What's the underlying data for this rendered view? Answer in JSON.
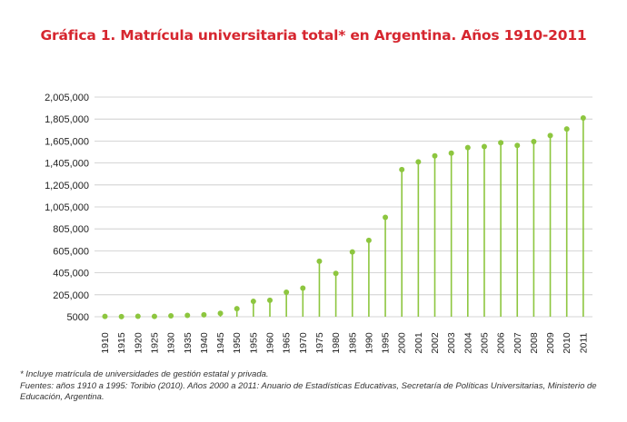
{
  "colors": {
    "title": "#d6262f",
    "series": "#8dc63f",
    "grid": "#c8c8c8",
    "text": "#222222"
  },
  "chart_data": {
    "type": "lollipop",
    "title": "Gráfica 1. Matrícula universitaria total* en Argentina. Años 1910-2011",
    "xlabel": "",
    "ylabel": "",
    "ylim": [
      5000,
      2005000
    ],
    "grid": true,
    "legend": "none",
    "y_ticks": [
      "2,005,000",
      "1,805,000",
      "1,605,000",
      "1,405,000",
      "1,205,000",
      "1,005,000",
      "805,000",
      "605,000",
      "405,000",
      "205,000",
      "5000"
    ],
    "y_tick_values": [
      2005000,
      1805000,
      1605000,
      1405000,
      1205000,
      1005000,
      805000,
      605000,
      405000,
      205000,
      5000
    ],
    "categories": [
      "1910",
      "1915",
      "1920",
      "1925",
      "1930",
      "1935",
      "1940",
      "1945",
      "1950",
      "1955",
      "1960",
      "1965",
      "1970",
      "1975",
      "1980",
      "1985",
      "1990",
      "1995",
      "2000",
      "2001",
      "2002",
      "2003",
      "2004",
      "2005",
      "2006",
      "2007",
      "2008",
      "2009",
      "2010",
      "2011"
    ],
    "values": [
      8000,
      6000,
      9000,
      8000,
      13000,
      17000,
      23000,
      36000,
      78000,
      145000,
      155000,
      228000,
      265000,
      510000,
      400000,
      595000,
      700000,
      910000,
      1345000,
      1415000,
      1470000,
      1495000,
      1545000,
      1555000,
      1590000,
      1565000,
      1600000,
      1655000,
      1715000,
      1815000
    ]
  },
  "footnote": {
    "line1": "* Incluye matrícula de universidades de gestión estatal y privada.",
    "line2": "Fuentes: años 1910 a 1995: Toribio (2010). Años 2000 a 2011: Anuario de Estadísticas Educativas, Secretaría de Políticas Universitarias, Ministerio de",
    "line3": "Educación, Argentina."
  }
}
